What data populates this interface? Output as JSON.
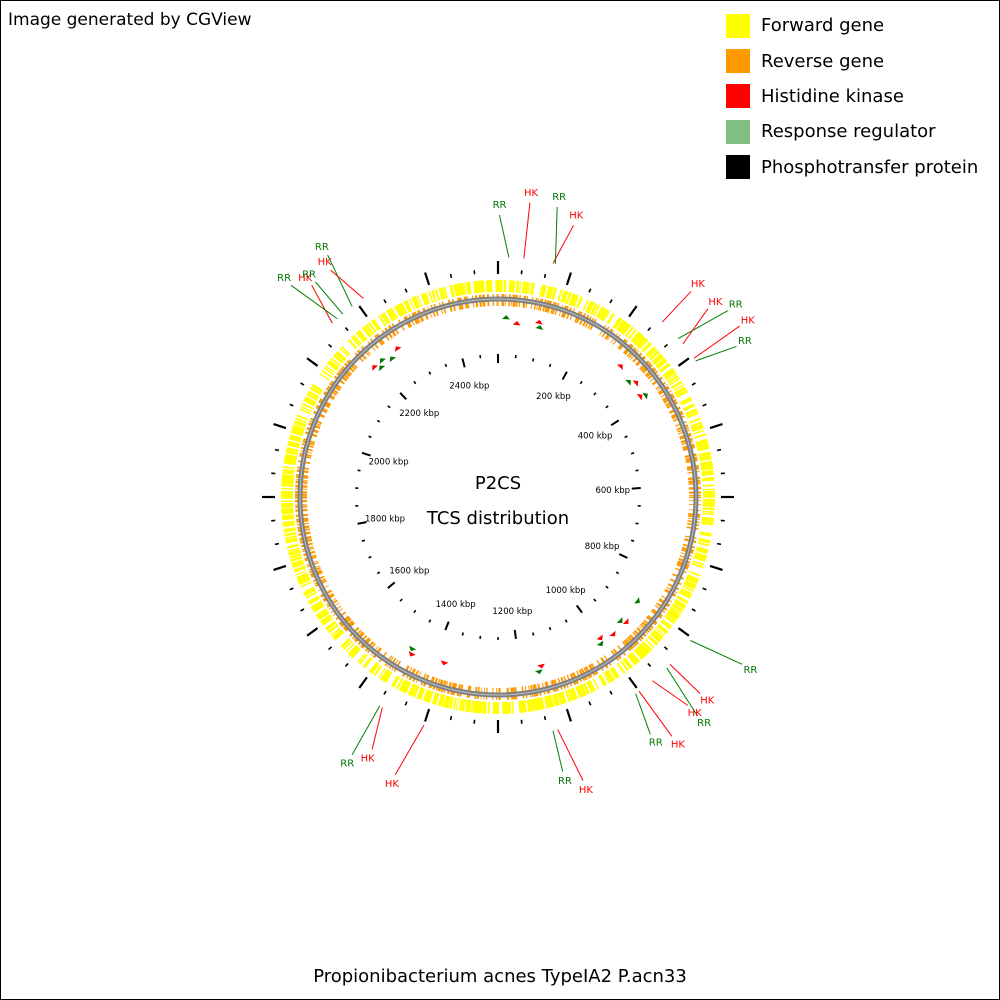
{
  "header": {
    "credit": "Image generated by CGView"
  },
  "legend": [
    {
      "label": "Forward gene",
      "color": "#ffff00"
    },
    {
      "label": "Reverse gene",
      "color": "#ff9900"
    },
    {
      "label": "Histidine kinase",
      "color": "#ff0000"
    },
    {
      "label": "Response regulator",
      "color": "#80c080"
    },
    {
      "label": "Phosphotransfer protein",
      "color": "#000000"
    }
  ],
  "map": {
    "title_line1": "P2CS",
    "title_line2": "TCS distribution",
    "genome_size_kbp": 2500,
    "ruler_labels": [
      "200 kbp",
      "400 kbp",
      "600 kbp",
      "800 kbp",
      "1000 kbp",
      "1200 kbp",
      "1400 kbp",
      "1600 kbp",
      "1800 kbp",
      "2000 kbp",
      "2200 kbp",
      "2400 kbp"
    ],
    "hk_color": "#ff0000",
    "rr_color": "#007700",
    "label_line_rr_color": "#008000",
    "backbone_color": "#808080",
    "features": [
      {
        "type": "RR",
        "label": "RR",
        "kbp": 18
      },
      {
        "type": "HK",
        "label": "HK",
        "kbp": 43
      },
      {
        "type": "HK",
        "label": "HK",
        "kbp": 92
      },
      {
        "type": "RR",
        "label": "RR",
        "kbp": 96
      },
      {
        "type": "HK",
        "label": "HK",
        "kbp": 300
      },
      {
        "type": "RR",
        "label": "RR",
        "kbp": 338
      },
      {
        "type": "HK",
        "label": "HK",
        "kbp": 350
      },
      {
        "type": "HK",
        "label": "HK",
        "kbp": 380
      },
      {
        "type": "RR",
        "label": "RR",
        "kbp": 385
      },
      {
        "type": "RR",
        "label": "RR",
        "kbp": 880
      },
      {
        "type": "HK",
        "label": "HK",
        "kbp": 932
      },
      {
        "type": "RR",
        "label": "RR",
        "kbp": 940
      },
      {
        "type": "HK",
        "label": "HK",
        "kbp": 972
      },
      {
        "type": "HK",
        "label": "HK",
        "kbp": 1000
      },
      {
        "type": "RR",
        "label": "RR",
        "kbp": 1007
      },
      {
        "type": "HK",
        "label": "HK",
        "kbp": 1150
      },
      {
        "type": "RR",
        "label": "RR",
        "kbp": 1158
      },
      {
        "type": "HK",
        "label": "HK",
        "kbp": 1375
      },
      {
        "type": "HK",
        "label": "HK",
        "kbp": 1450
      },
      {
        "type": "RR",
        "label": "RR",
        "kbp": 1455
      },
      {
        "type": "HK",
        "label": "HK",
        "kbp": 2197
      },
      {
        "type": "RR",
        "label": "RR",
        "kbp": 2208
      },
      {
        "type": "RR",
        "label": "RR",
        "kbp": 2220
      },
      {
        "type": "RR",
        "label": "RR",
        "kbp": 2240
      },
      {
        "type": "HK",
        "label": "HK",
        "kbp": 2263
      }
    ]
  },
  "caption": "Propionibacterium acnes TypeIA2 P.acn33"
}
